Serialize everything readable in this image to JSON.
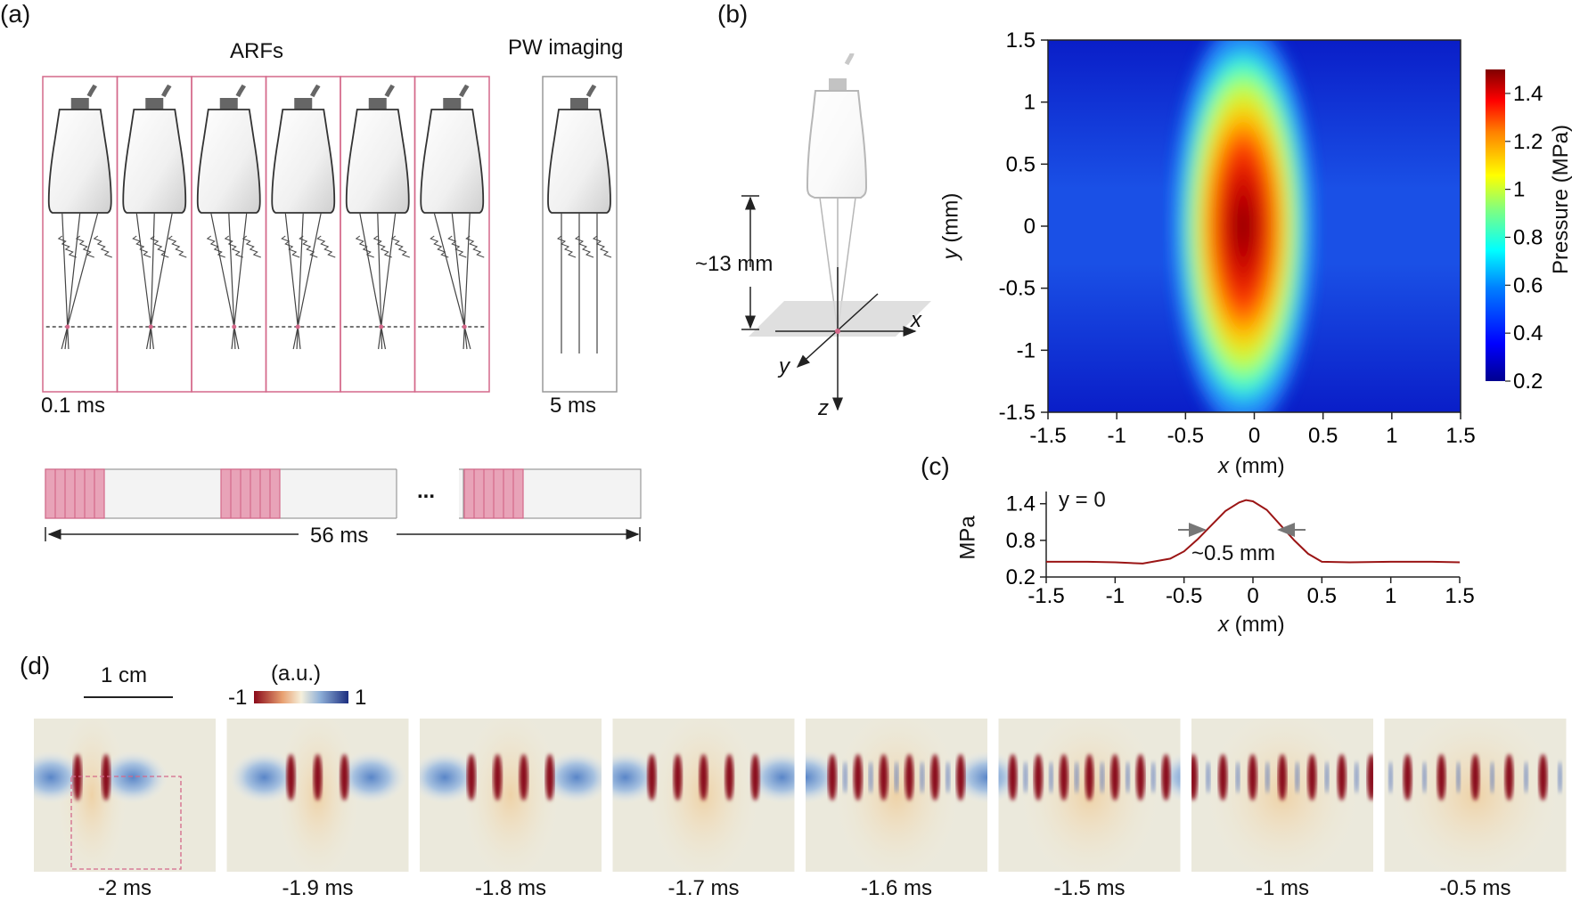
{
  "panels": {
    "a": {
      "letter": "(a)",
      "arf_label": "ARFs",
      "pw_label": "PW imaging",
      "arf_duration": "0.1 ms",
      "pw_duration": "5 ms",
      "period_label": "56 ms",
      "ellipsis": "...",
      "num_arf_probes": 6
    },
    "b": {
      "letter": "(b)",
      "distance_label": "~13 mm",
      "axis_x": "x",
      "axis_y": "y",
      "axis_z": "z"
    },
    "c": {
      "letter": "(c)"
    },
    "d": {
      "letter": "(d)",
      "scalebar_label": "1 cm",
      "colorbar_unit": "(a.u.)",
      "colorbar_min": "-1",
      "colorbar_max": "1",
      "frames": [
        "-2 ms",
        "-1.9 ms",
        "-1.8 ms",
        "-1.7 ms",
        "-1.6 ms",
        "-1.5 ms",
        "-1 ms",
        "-0.5 ms"
      ]
    }
  },
  "colors": {
    "accent_pink": "#d4688a",
    "fill_pink": "#e8a3b8",
    "curve_red": "#9b1515",
    "probe_gray": "#555555"
  },
  "chart_data": [
    {
      "type": "heatmap",
      "xlabel_var": "x",
      "xlabel_unit": "(mm)",
      "ylabel_var": "y",
      "ylabel_unit": "(mm)",
      "xlim": [
        -1.5,
        1.5
      ],
      "ylim": [
        -1.5,
        1.5
      ],
      "xticks": [
        "-1.5",
        "-1",
        "-0.5",
        "0",
        "0.5",
        "1",
        "1.5"
      ],
      "yticks": [
        "1.5",
        "1",
        "0.5",
        "0",
        "-0.5",
        "-1",
        "-1.5"
      ],
      "colorbar": {
        "label": "Pressure (MPa)",
        "range": [
          0.2,
          1.5
        ],
        "ticks": [
          "1.4",
          "1.2",
          "1",
          "0.8",
          "0.6",
          "0.4",
          "0.2"
        ]
      },
      "peak": {
        "x": -0.08,
        "y": 0.0,
        "value": 1.45
      }
    },
    {
      "type": "line",
      "annotation": "y = 0",
      "fwhm_label": "~0.5 mm",
      "xlabel_var": "x",
      "xlabel_unit": "(mm)",
      "ylabel": "MPa",
      "xlim": [
        -1.5,
        1.5
      ],
      "ylim": [
        0.2,
        1.6
      ],
      "xticks": [
        "-1.5",
        "-1",
        "-0.5",
        "0",
        "0.5",
        "1",
        "1.5"
      ],
      "yticks": [
        "1.4",
        "0.8",
        "0.2"
      ],
      "x": [
        -1.5,
        -1.2,
        -1.0,
        -0.8,
        -0.6,
        -0.5,
        -0.4,
        -0.3,
        -0.2,
        -0.1,
        -0.05,
        0.0,
        0.1,
        0.2,
        0.3,
        0.4,
        0.5,
        0.7,
        1.0,
        1.3,
        1.5
      ],
      "y": [
        0.45,
        0.45,
        0.44,
        0.42,
        0.5,
        0.62,
        0.82,
        1.05,
        1.28,
        1.42,
        1.46,
        1.44,
        1.3,
        1.05,
        0.8,
        0.58,
        0.45,
        0.44,
        0.45,
        0.45,
        0.44
      ]
    }
  ]
}
